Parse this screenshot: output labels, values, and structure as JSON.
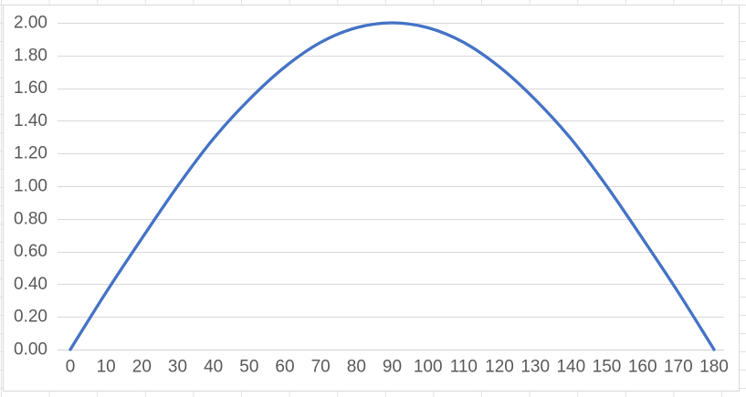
{
  "chart_data": {
    "type": "line",
    "x": [
      0,
      10,
      20,
      30,
      40,
      50,
      60,
      70,
      80,
      90,
      100,
      110,
      120,
      130,
      140,
      150,
      160,
      170,
      180
    ],
    "values": [
      0.0,
      0.35,
      0.68,
      1.0,
      1.29,
      1.53,
      1.73,
      1.88,
      1.97,
      2.0,
      1.97,
      1.88,
      1.73,
      1.53,
      1.29,
      1.0,
      0.68,
      0.35,
      0.0
    ],
    "x_tick_labels": [
      "0",
      "10",
      "20",
      "30",
      "40",
      "50",
      "60",
      "70",
      "80",
      "90",
      "100",
      "110",
      "120",
      "130",
      "140",
      "150",
      "160",
      "170",
      "180"
    ],
    "y_tick_labels": [
      "0.00",
      "0.20",
      "0.40",
      "0.60",
      "0.80",
      "1.00",
      "1.20",
      "1.40",
      "1.60",
      "1.80",
      "2.00"
    ],
    "xlim": [
      0,
      180
    ],
    "ylim": [
      0,
      2
    ],
    "x_major_unit": 10,
    "y_major_unit": 0.2,
    "grid": "horizontal-major-only",
    "legend": "none",
    "smooth_line": true
  },
  "colors": {
    "series_line": "#4472C4",
    "gridline": "#D9D9D9",
    "axis_line": "#D2D2D2",
    "tick_label": "#595959",
    "chart_border": "#D9D9D9",
    "chart_fill": "#FFFFFF",
    "sheet_gridline": "#E2E2E2"
  }
}
